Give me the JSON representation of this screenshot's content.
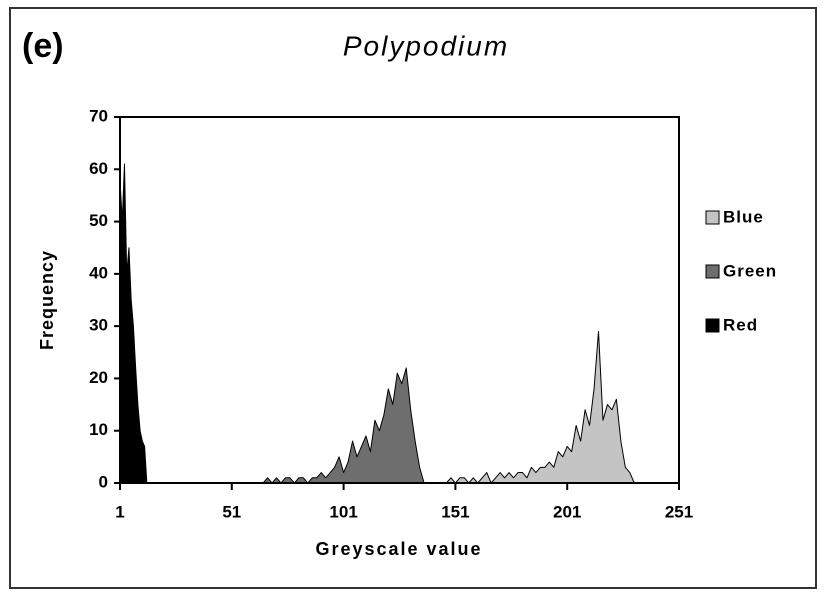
{
  "chart_data": {
    "type": "area",
    "panel_label": "(e)",
    "title": "Polypodium",
    "x_label": "Greyscale value",
    "y_label": "Frequency",
    "xlim": [
      1,
      251
    ],
    "xticks": [
      1,
      51,
      101,
      151,
      201,
      251
    ],
    "ylim": [
      0,
      70
    ],
    "yticks": [
      0,
      10,
      20,
      30,
      40,
      50,
      60,
      70
    ],
    "legend": "right",
    "series": [
      {
        "name": "Blue",
        "color": "#c4c4c4",
        "x": [
          147,
          149,
          151,
          153,
          155,
          157,
          159,
          161,
          163,
          165,
          167,
          169,
          171,
          173,
          175,
          177,
          179,
          181,
          183,
          185,
          187,
          189,
          191,
          193,
          195,
          197,
          199,
          201,
          203,
          205,
          207,
          209,
          211,
          213,
          215,
          217,
          219,
          221,
          223,
          225,
          227,
          229,
          231
        ],
        "values": [
          0,
          1,
          0,
          1,
          1,
          0,
          1,
          0,
          1,
          2,
          0,
          1,
          2,
          1,
          2,
          1,
          2,
          2,
          1,
          3,
          2,
          3,
          3,
          4,
          3,
          6,
          5,
          7,
          6,
          11,
          8,
          14,
          11,
          18,
          29,
          12,
          15,
          14,
          16,
          8,
          3,
          2,
          0
        ]
      },
      {
        "name": "Green",
        "color": "#6e6e6e",
        "x": [
          65,
          67,
          69,
          71,
          73,
          75,
          77,
          79,
          81,
          83,
          85,
          87,
          89,
          91,
          93,
          95,
          97,
          99,
          101,
          103,
          105,
          107,
          109,
          111,
          113,
          115,
          117,
          119,
          121,
          123,
          125,
          127,
          129,
          131,
          133,
          135,
          137
        ],
        "values": [
          0,
          1,
          0,
          1,
          0,
          1,
          1,
          0,
          1,
          1,
          0,
          1,
          1,
          2,
          1,
          2,
          3,
          5,
          2,
          4,
          8,
          5,
          7,
          9,
          6,
          12,
          10,
          13,
          18,
          15,
          21,
          19,
          22,
          14,
          8,
          3,
          0
        ]
      },
      {
        "name": "Red",
        "color": "#000000",
        "x": [
          1,
          2,
          3,
          4,
          5,
          6,
          7,
          8,
          9,
          10,
          11,
          12,
          13
        ],
        "values": [
          58,
          50,
          61,
          40,
          45,
          35,
          30,
          22,
          15,
          10,
          8,
          7,
          0
        ]
      }
    ]
  }
}
